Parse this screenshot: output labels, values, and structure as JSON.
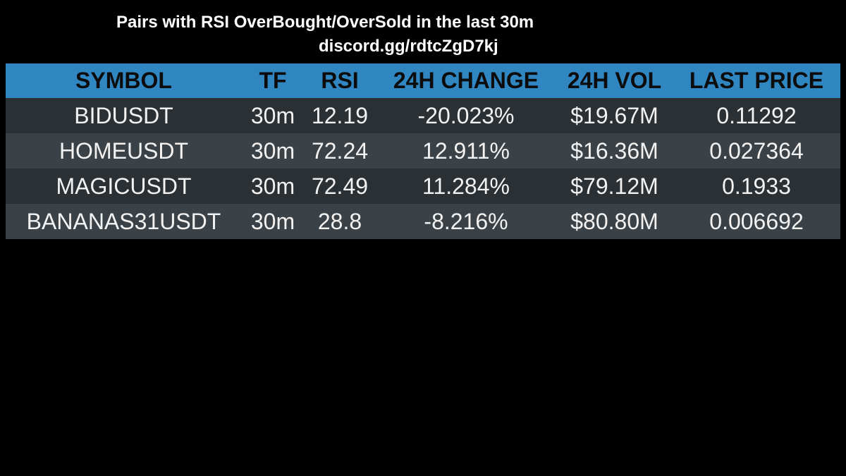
{
  "header": {
    "title": "Pairs with RSI OverBought/OverSold in the last 30m",
    "subtitle": "discord.gg/rdtcZgD7kj"
  },
  "table": {
    "columns": [
      "SYMBOL",
      "TF",
      "RSI",
      "24H CHANGE",
      "24H VOL",
      "LAST PRICE"
    ],
    "rows": [
      [
        "BIDUSDT",
        "30m",
        "12.19",
        "-20.023%",
        "$19.67M",
        "0.11292"
      ],
      [
        "HOMEUSDT",
        "30m",
        "72.24",
        "12.911%",
        "$16.36M",
        "0.027364"
      ],
      [
        "MAGICUSDT",
        "30m",
        "72.49",
        "11.284%",
        "$79.12M",
        "0.1933"
      ],
      [
        "BANANAS31USDT",
        "30m",
        "28.8",
        "-8.216%",
        "$80.80M",
        "0.006692"
      ]
    ]
  },
  "colors": {
    "background": "#000000",
    "header_row": "#2f86c1",
    "row_odd": "#2b3034",
    "row_even": "#3b4247"
  }
}
